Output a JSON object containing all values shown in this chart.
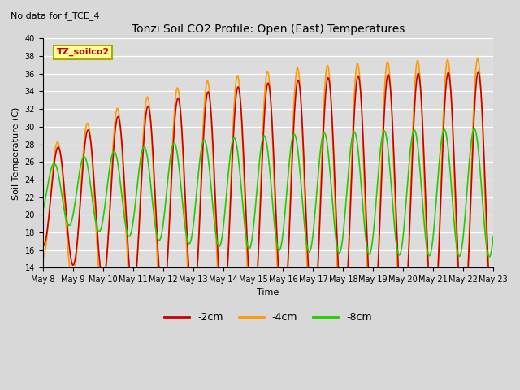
{
  "title": "Tonzi Soil CO2 Profile: Open (East) Temperatures",
  "subtitle": "No data for f_TCE_4",
  "ylabel": "Soil Temperature (C)",
  "xlabel": "Time",
  "ylim": [
    14,
    40
  ],
  "yticks": [
    14,
    16,
    18,
    20,
    22,
    24,
    26,
    28,
    30,
    32,
    34,
    36,
    38,
    40
  ],
  "bg_color": "#dcdcdc",
  "fig_bg_color": "#d8d8d8",
  "legend_label": "TZ_soilco2",
  "legend_box_color": "#ffff99",
  "legend_box_edge": "#aaaa00",
  "series": [
    {
      "label": "-2cm",
      "color": "#cc0000",
      "lw": 1.2
    },
    {
      "label": "-4cm",
      "color": "#ff9900",
      "lw": 1.2
    },
    {
      "label": "-8cm",
      "color": "#22cc00",
      "lw": 1.2
    }
  ],
  "n_points": 600
}
